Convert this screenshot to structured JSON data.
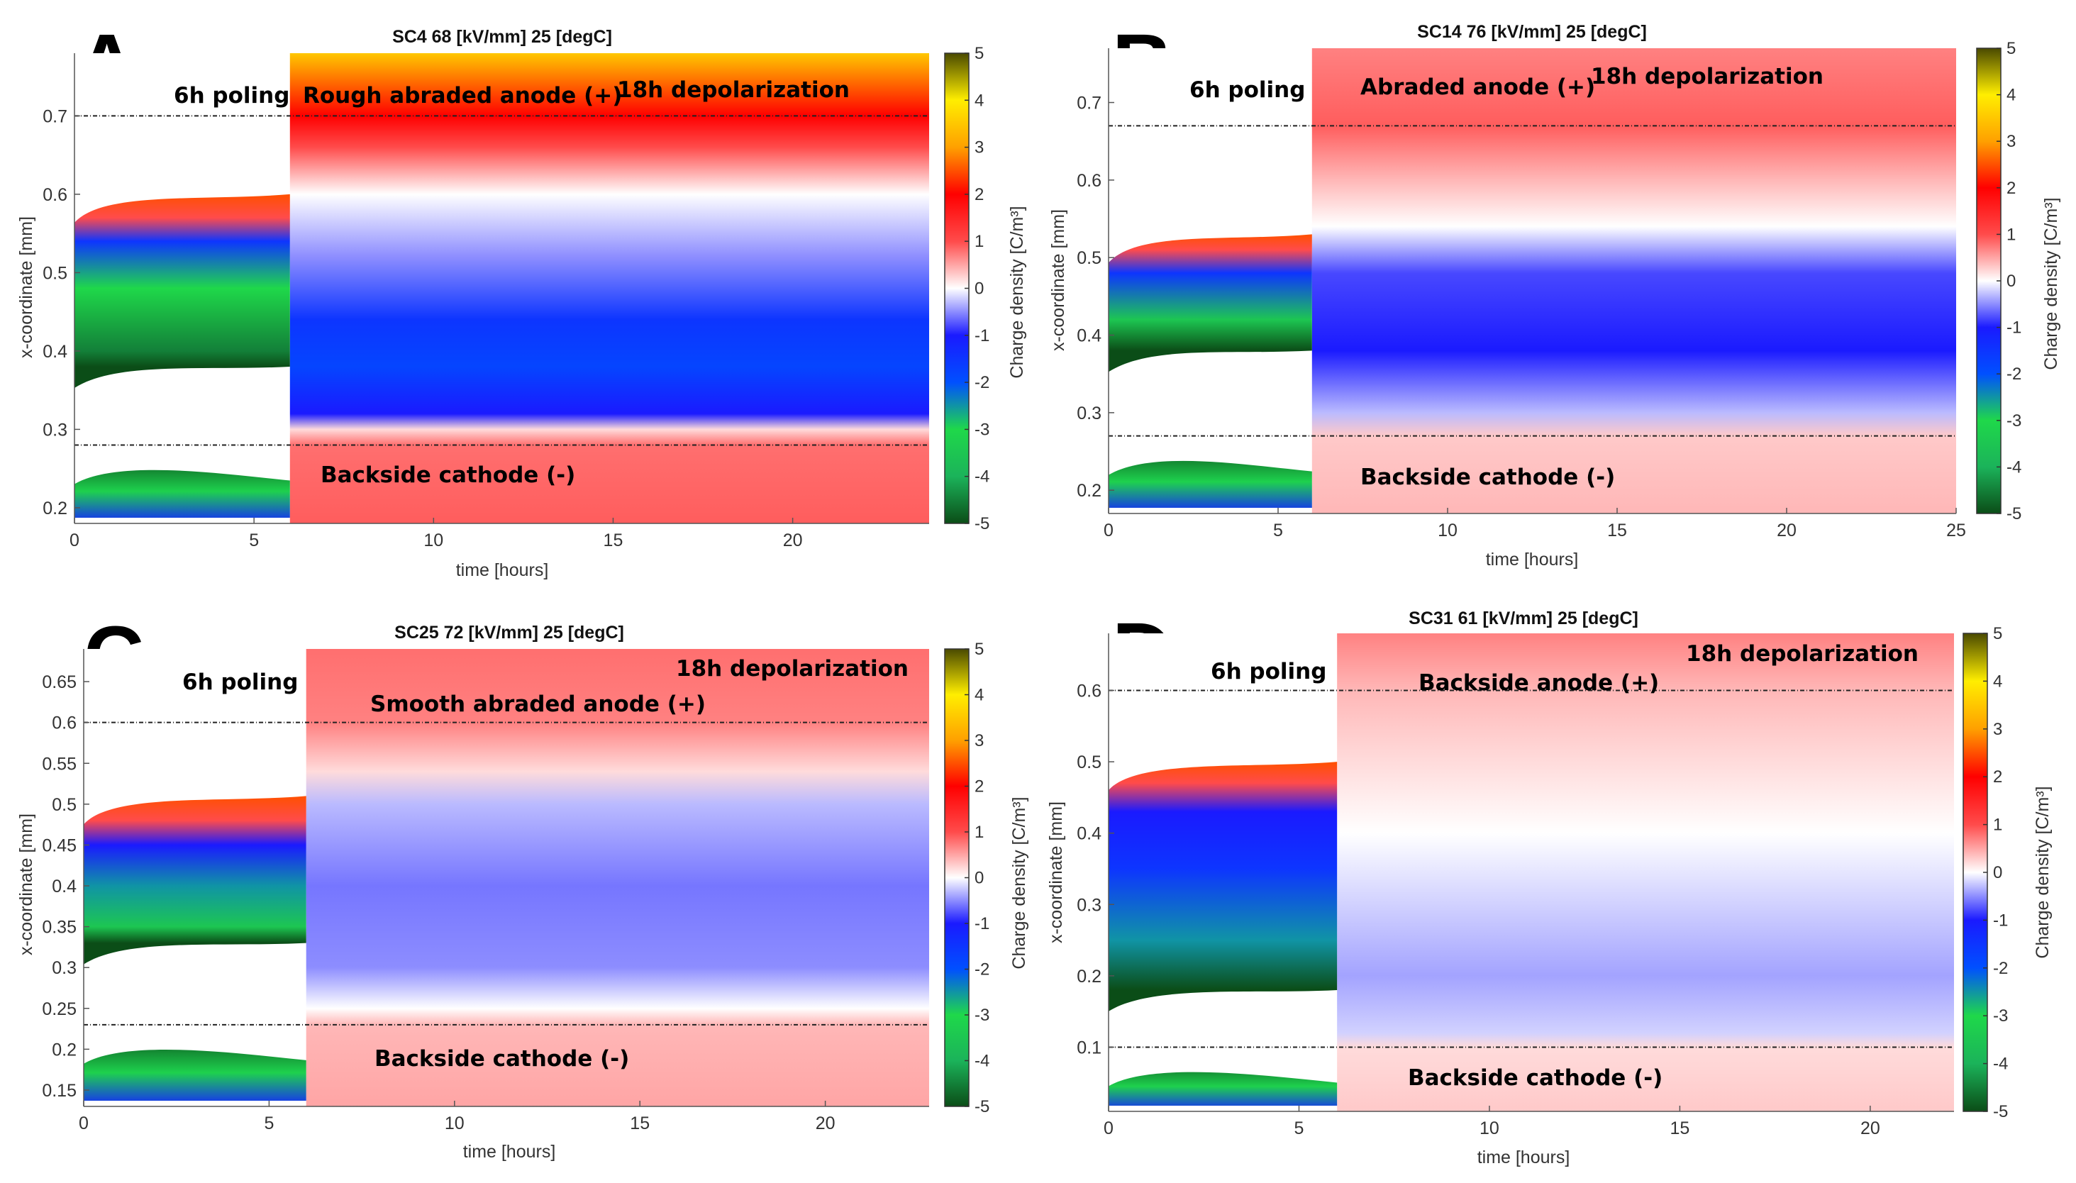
{
  "colorbar": {
    "label": "Charge density [C/m³]",
    "ticks": [
      5,
      4,
      3,
      2,
      1,
      0,
      -1,
      -2,
      -3,
      -4,
      -5
    ],
    "range": [
      -5,
      5
    ],
    "colormap": [
      "#0b4d17",
      "#1bb35a",
      "#1fd84a",
      "#0050ff",
      "#1a1aff",
      "#ffffff",
      "#ff4b4b",
      "#ff0000",
      "#ffa000",
      "#ffee00",
      "#4a4a00"
    ]
  },
  "chart_data": [
    {
      "type": "heatmap",
      "letter": "A",
      "title": "SC4 68 [kV/mm] 25 [degC]",
      "xlabel": "time [hours]",
      "ylabel": "x-coordinate [mm]",
      "xlim": [
        0,
        23.8
      ],
      "ylim": [
        0.18,
        0.78
      ],
      "xticks": [
        0,
        5,
        10,
        15,
        20
      ],
      "yticks": [
        0.2,
        0.3,
        0.4,
        0.5,
        0.6,
        0.7
      ],
      "poling_end_hours": 6,
      "electrode_lines_mm": [
        0.7,
        0.28
      ],
      "annotations": {
        "poling": "6h poling",
        "anode": "Rough abraded anode (+)",
        "depol": "18h depolarization",
        "cathode": "Backside cathode (-)"
      },
      "poling_profile": [
        {
          "x": 0.6,
          "rho": 2.5
        },
        {
          "x": 0.57,
          "rho": 1.0
        },
        {
          "x": 0.54,
          "rho": -1.5
        },
        {
          "x": 0.48,
          "rho": -3.0
        },
        {
          "x": 0.4,
          "rho": -4.5
        },
        {
          "x": 0.38,
          "rho": -5.0
        }
      ],
      "depol_profile": [
        {
          "x": 0.78,
          "rho": 3.5
        },
        {
          "x": 0.7,
          "rho": 2.0
        },
        {
          "x": 0.66,
          "rho": 1.0
        },
        {
          "x": 0.6,
          "rho": 0.0
        },
        {
          "x": 0.52,
          "rho": -0.5
        },
        {
          "x": 0.44,
          "rho": -1.5
        },
        {
          "x": 0.38,
          "rho": -1.8
        },
        {
          "x": 0.32,
          "rho": -1.0
        },
        {
          "x": 0.3,
          "rho": 0.2
        },
        {
          "x": 0.28,
          "rho": 0.8
        },
        {
          "x": 0.18,
          "rho": 0.9
        }
      ]
    },
    {
      "type": "heatmap",
      "letter": "B",
      "title": "SC14 76 [kV/mm] 25 [degC]",
      "xlabel": "time [hours]",
      "ylabel": "x-coordinate [mm]",
      "xlim": [
        0,
        25
      ],
      "ylim": [
        0.17,
        0.77
      ],
      "xticks": [
        0,
        5,
        10,
        15,
        20,
        25
      ],
      "yticks": [
        0.2,
        0.3,
        0.4,
        0.5,
        0.6,
        0.7
      ],
      "poling_end_hours": 6,
      "electrode_lines_mm": [
        0.67,
        0.27
      ],
      "annotations": {
        "poling": "6h poling",
        "anode": "Abraded anode (+)",
        "depol": "18h depolarization",
        "cathode": "Backside cathode (-)"
      },
      "poling_profile": [
        {
          "x": 0.53,
          "rho": 2.5
        },
        {
          "x": 0.51,
          "rho": 1.0
        },
        {
          "x": 0.48,
          "rho": -1.5
        },
        {
          "x": 0.42,
          "rho": -3.5
        },
        {
          "x": 0.38,
          "rho": -5.0
        }
      ],
      "depol_profile": [
        {
          "x": 0.77,
          "rho": 0.7
        },
        {
          "x": 0.67,
          "rho": 0.9
        },
        {
          "x": 0.6,
          "rho": 0.4
        },
        {
          "x": 0.54,
          "rho": 0.0
        },
        {
          "x": 0.48,
          "rho": -0.8
        },
        {
          "x": 0.38,
          "rho": -1.0
        },
        {
          "x": 0.3,
          "rho": -0.3
        },
        {
          "x": 0.27,
          "rho": 0.3
        },
        {
          "x": 0.17,
          "rho": 0.4
        }
      ]
    },
    {
      "type": "heatmap",
      "letter": "C",
      "title": "SC25 72 [kV/mm] 25 [degC]",
      "xlabel": "time [hours]",
      "ylabel": "x-coordinate [mm]",
      "xlim": [
        0,
        22.8
      ],
      "ylim": [
        0.13,
        0.69
      ],
      "xticks": [
        0,
        5,
        10,
        15,
        20
      ],
      "yticks": [
        0.15,
        0.2,
        0.25,
        0.3,
        0.35,
        0.4,
        0.45,
        0.5,
        0.55,
        0.6,
        0.65
      ],
      "poling_end_hours": 6,
      "electrode_lines_mm": [
        0.6,
        0.23
      ],
      "annotations": {
        "poling": "6h poling",
        "anode": "Smooth abraded anode (+)",
        "depol": "18h depolarization",
        "cathode": "Backside cathode (-)"
      },
      "poling_profile": [
        {
          "x": 0.51,
          "rho": 2.5
        },
        {
          "x": 0.48,
          "rho": 1.0
        },
        {
          "x": 0.45,
          "rho": -1.0
        },
        {
          "x": 0.4,
          "rho": -2.5
        },
        {
          "x": 0.35,
          "rho": -3.5
        },
        {
          "x": 0.33,
          "rho": -5.0
        }
      ],
      "depol_profile": [
        {
          "x": 0.69,
          "rho": 0.8
        },
        {
          "x": 0.6,
          "rho": 0.7
        },
        {
          "x": 0.54,
          "rho": 0.2
        },
        {
          "x": 0.5,
          "rho": -0.3
        },
        {
          "x": 0.4,
          "rho": -0.6
        },
        {
          "x": 0.3,
          "rho": -0.5
        },
        {
          "x": 0.25,
          "rho": 0.0
        },
        {
          "x": 0.23,
          "rho": 0.4
        },
        {
          "x": 0.13,
          "rho": 0.5
        }
      ]
    },
    {
      "type": "heatmap",
      "letter": "D",
      "title": "SC31 61 [kV/mm] 25 [degC]",
      "xlabel": "time [hours]",
      "ylabel": "x-coordinate [mm]",
      "xlim": [
        0,
        22.2
      ],
      "ylim": [
        0.01,
        0.68
      ],
      "xticks": [
        0,
        5,
        10,
        15,
        20
      ],
      "yticks": [
        0.1,
        0.2,
        0.3,
        0.4,
        0.5,
        0.6
      ],
      "poling_end_hours": 6,
      "electrode_lines_mm": [
        0.6,
        0.1
      ],
      "annotations": {
        "poling": "6h poling",
        "anode": "Backside anode (+)",
        "depol": "18h depolarization",
        "cathode": "Backside cathode (-)"
      },
      "poling_profile": [
        {
          "x": 0.5,
          "rho": 2.5
        },
        {
          "x": 0.47,
          "rho": 1.0
        },
        {
          "x": 0.43,
          "rho": -1.0
        },
        {
          "x": 0.35,
          "rho": -1.5
        },
        {
          "x": 0.25,
          "rho": -2.5
        },
        {
          "x": 0.18,
          "rho": -5.0
        }
      ],
      "depol_profile": [
        {
          "x": 0.68,
          "rho": 0.7
        },
        {
          "x": 0.6,
          "rho": 0.4
        },
        {
          "x": 0.5,
          "rho": 0.2
        },
        {
          "x": 0.4,
          "rho": 0.0
        },
        {
          "x": 0.3,
          "rho": -0.2
        },
        {
          "x": 0.2,
          "rho": -0.4
        },
        {
          "x": 0.12,
          "rho": -0.2
        },
        {
          "x": 0.1,
          "rho": 0.2
        },
        {
          "x": 0.01,
          "rho": 0.3
        }
      ]
    }
  ]
}
